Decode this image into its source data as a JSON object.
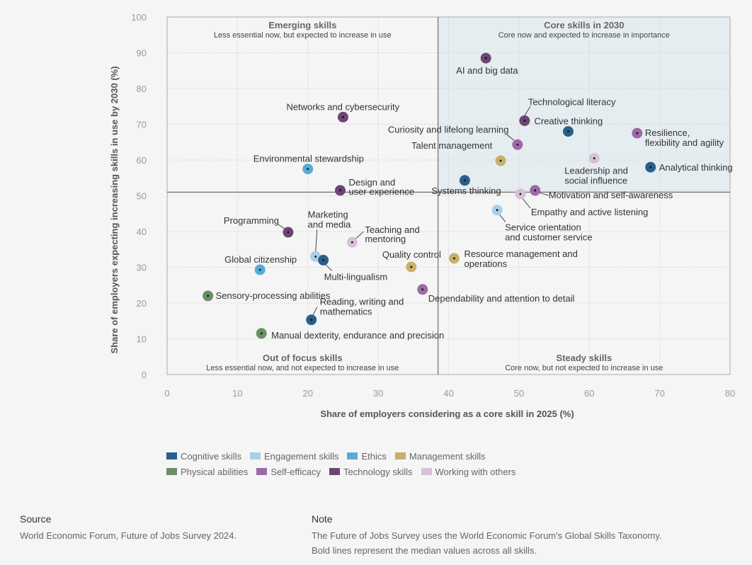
{
  "colors": {
    "cognitive": "#2b5f8a",
    "engagement": "#a9cfe8",
    "ethics": "#5aaad8",
    "management": "#c9b06a",
    "physical": "#6b8e68",
    "selfefficacy": "#9c6aa6",
    "technology": "#6c4573",
    "workingothers": "#d6c1d8"
  },
  "chart_data": {
    "type": "scatter",
    "xlabel": "Share of employers considering as a core skill in 2025 (%)",
    "ylabel": "Share of employers expecting increasing skills in use by 2030 (%)",
    "xlim": [
      0,
      80
    ],
    "ylim": [
      0,
      100
    ],
    "xticks": [
      "0",
      "10",
      "20",
      "30",
      "40",
      "50",
      "60",
      "70",
      "80"
    ],
    "yticks": [
      "0",
      "10",
      "20",
      "30",
      "40",
      "50",
      "60",
      "70",
      "80",
      "90",
      "100"
    ],
    "grid": true,
    "median_x": 38.5,
    "median_y": 51,
    "quadrants": {
      "tl": {
        "title": "Emerging skills",
        "sub": "Less essential now, but expected to increase in use"
      },
      "tr": {
        "title": "Core skills in 2030",
        "sub": "Core now and expected to increase in importance"
      },
      "bl": {
        "title": "Out of focus skills",
        "sub": "Less essential now, and not expected to increase in use"
      },
      "br": {
        "title": "Steady skills",
        "sub": "Core now, but not expected to increase in use"
      }
    },
    "categories": [
      {
        "key": "cognitive",
        "name": "Cognitive skills"
      },
      {
        "key": "engagement",
        "name": "Engagement skills"
      },
      {
        "key": "ethics",
        "name": "Ethics"
      },
      {
        "key": "management",
        "name": "Management skills"
      },
      {
        "key": "physical",
        "name": "Physical abilities"
      },
      {
        "key": "selfefficacy",
        "name": "Self-efficacy"
      },
      {
        "key": "technology",
        "name": "Technology skills"
      },
      {
        "key": "workingothers",
        "name": "Working with others"
      }
    ],
    "points": [
      {
        "name": "AI and big data",
        "x": 45.3,
        "y": 88.5,
        "cat": "technology"
      },
      {
        "name": "Technological literacy",
        "x": 50.8,
        "y": 71,
        "cat": "technology"
      },
      {
        "name": "Creative thinking",
        "x": 57,
        "y": 68,
        "cat": "cognitive"
      },
      {
        "name": "Resilience, flexibility and agility",
        "x": 66.8,
        "y": 67.5,
        "cat": "selfefficacy"
      },
      {
        "name": "Curiosity and lifelong learning",
        "x": 49.8,
        "y": 64.3,
        "cat": "selfefficacy"
      },
      {
        "name": "Talent management",
        "x": 47.4,
        "y": 59.8,
        "cat": "management"
      },
      {
        "name": "Leadership and social influence",
        "x": 60.7,
        "y": 60.5,
        "cat": "workingothers"
      },
      {
        "name": "Analytical thinking",
        "x": 68.7,
        "y": 58,
        "cat": "cognitive"
      },
      {
        "name": "Systems thinking",
        "x": 42.3,
        "y": 54.3,
        "cat": "cognitive"
      },
      {
        "name": "Motivation and self-awareness",
        "x": 52.3,
        "y": 51.5,
        "cat": "selfefficacy"
      },
      {
        "name": "Empathy and active listening",
        "x": 50.2,
        "y": 50.5,
        "cat": "workingothers"
      },
      {
        "name": "Service orientation and customer service",
        "x": 46.9,
        "y": 46,
        "cat": "engagement"
      },
      {
        "name": "Networks and cybersecurity",
        "x": 25,
        "y": 72,
        "cat": "technology"
      },
      {
        "name": "Environmental stewardship",
        "x": 20,
        "y": 57.5,
        "cat": "ethics"
      },
      {
        "name": "Design and user experience",
        "x": 24.6,
        "y": 51.5,
        "cat": "technology"
      },
      {
        "name": "Programming",
        "x": 17.2,
        "y": 39.8,
        "cat": "technology"
      },
      {
        "name": "Marketing and media",
        "x": 21.1,
        "y": 33,
        "cat": "engagement"
      },
      {
        "name": "Multi-lingualism",
        "x": 22.2,
        "y": 32,
        "cat": "cognitive"
      },
      {
        "name": "Teaching and mentoring",
        "x": 26.3,
        "y": 37,
        "cat": "workingothers"
      },
      {
        "name": "Global citizenship",
        "x": 13.2,
        "y": 29.3,
        "cat": "ethics"
      },
      {
        "name": "Quality control",
        "x": 34.7,
        "y": 30.1,
        "cat": "management"
      },
      {
        "name": "Resource management and operations",
        "x": 40.8,
        "y": 32.5,
        "cat": "management"
      },
      {
        "name": "Dependability and attention to detail",
        "x": 36.3,
        "y": 23.8,
        "cat": "selfefficacy"
      },
      {
        "name": "Sensory-processing abilities",
        "x": 5.8,
        "y": 22,
        "cat": "physical"
      },
      {
        "name": "Reading, writing and mathematics",
        "x": 20.5,
        "y": 15.3,
        "cat": "cognitive"
      },
      {
        "name": "Manual dexterity, endurance and precision",
        "x": 13.4,
        "y": 11.5,
        "cat": "physical"
      }
    ]
  },
  "footer": {
    "source_heading": "Source",
    "source_text": "World Economic Forum, Future of Jobs Survey 2024.",
    "note_heading": "Note",
    "note_line1": "The Future of Jobs Survey uses the World Economic Forum's Global Skills Taxonomy.",
    "note_line2": "Bold lines represent the median values across all skills."
  }
}
